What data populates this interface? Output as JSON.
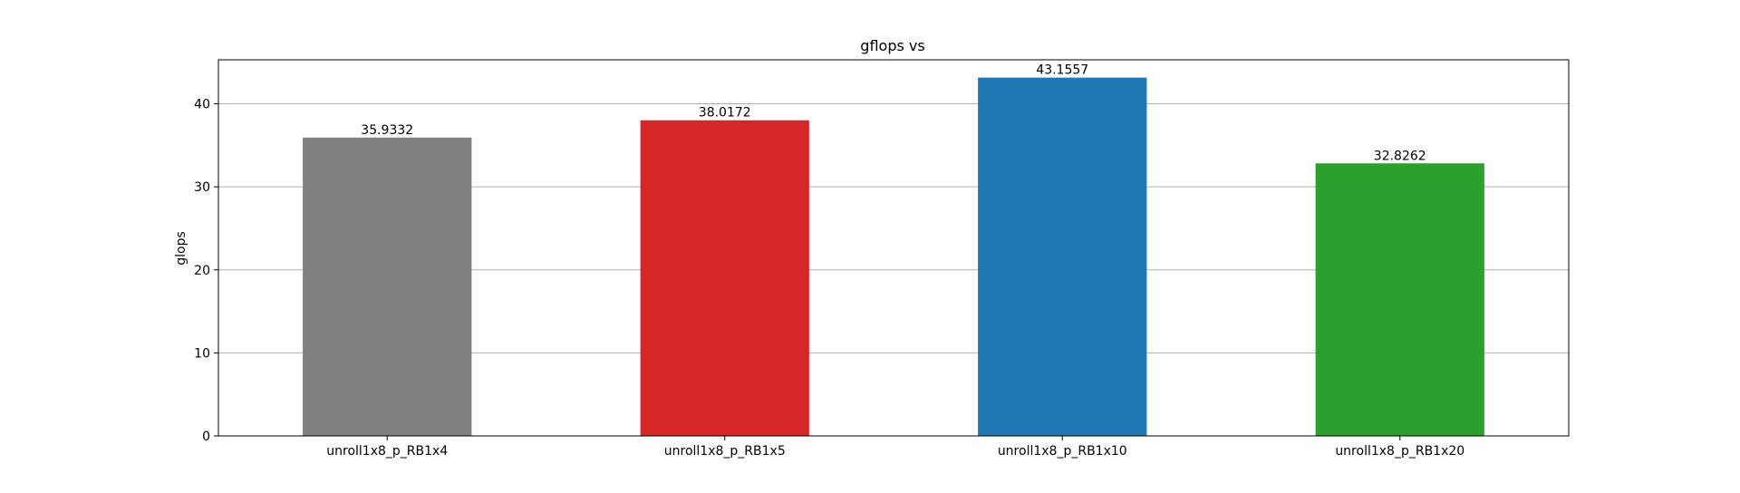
{
  "chart_data": {
    "type": "bar",
    "title": "gflops vs",
    "xlabel": "",
    "ylabel": "glops",
    "categories": [
      "unroll1x8_p_RB1x4",
      "unroll1x8_p_RB1x5",
      "unroll1x8_p_RB1x10",
      "unroll1x8_p_RB1x20"
    ],
    "values": [
      35.9332,
      38.0172,
      43.1557,
      32.8262
    ],
    "value_labels": [
      "35.9332",
      "38.0172",
      "43.1557",
      "32.8262"
    ],
    "colors": [
      "#7f7f7f",
      "#d62728",
      "#1f77b4",
      "#2ca02c"
    ],
    "ylim": [
      0,
      45.3
    ],
    "yticks": [
      0,
      10,
      20,
      30,
      40
    ],
    "grid": "y-major",
    "legend": "none"
  }
}
